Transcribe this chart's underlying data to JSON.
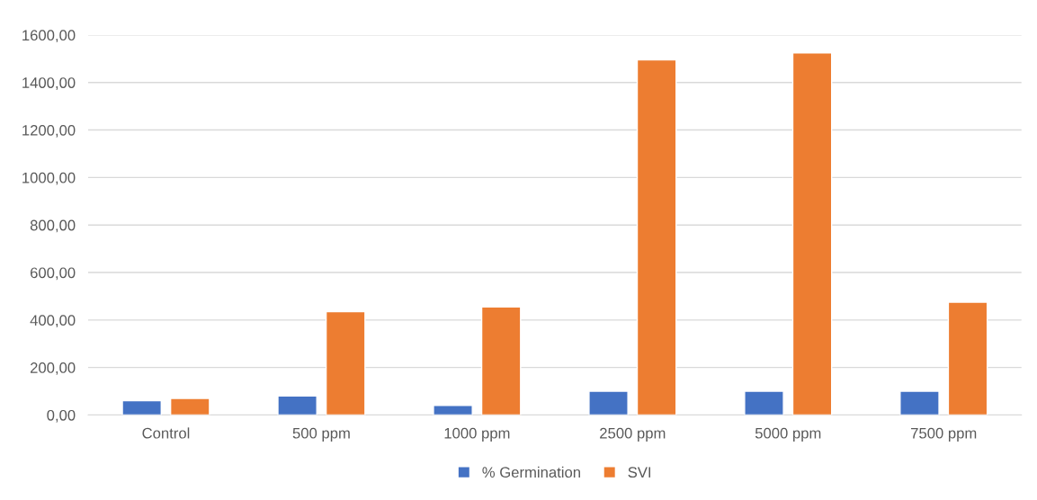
{
  "chart_data": {
    "type": "bar",
    "categories": [
      "Control",
      "500 ppm",
      "1000 ppm",
      "2500 ppm",
      "5000 ppm",
      "7500 ppm"
    ],
    "series": [
      {
        "name": "% Germination",
        "color": "#4472c4",
        "values": [
          60,
          80,
          40,
          100,
          100,
          100
        ]
      },
      {
        "name": "SVI",
        "color": "#ed7d31",
        "values": [
          70,
          435,
          455,
          1495,
          1525,
          475
        ]
      }
    ],
    "ylim": [
      0,
      1600
    ],
    "yticks": [
      {
        "value": 0,
        "label": "0,00"
      },
      {
        "value": 200,
        "label": "200,00"
      },
      {
        "value": 400,
        "label": "400,00"
      },
      {
        "value": 600,
        "label": "600,00"
      },
      {
        "value": 800,
        "label": "800,00"
      },
      {
        "value": 1000,
        "label": "1000,00"
      },
      {
        "value": 1200,
        "label": "1200,00"
      },
      {
        "value": 1400,
        "label": "1400,00"
      },
      {
        "value": 1600,
        "label": "1600,00"
      }
    ],
    "grid": "y",
    "legend": "bottom"
  }
}
